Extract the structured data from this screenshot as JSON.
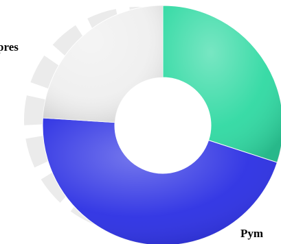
{
  "chart_data": {
    "type": "donut",
    "categories": [
      null,
      "Pym",
      "pres"
    ],
    "values": [
      30,
      46,
      24
    ],
    "colors": [
      "#2fd9a2",
      "#2b2fe3",
      "#efefef"
    ],
    "start_angle": 0,
    "direction": "clockwise"
  }
}
